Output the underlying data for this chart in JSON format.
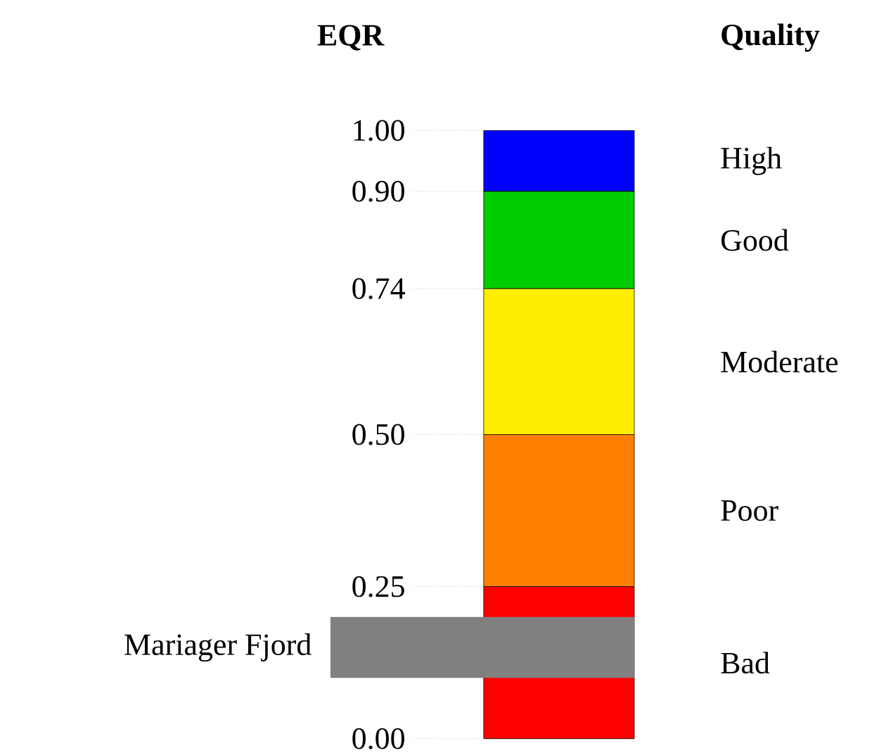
{
  "chart_data": {
    "type": "bar",
    "stacked": true,
    "categories": [
      null
    ],
    "ylabel": "EQR",
    "legend_title": "Quality",
    "grid": false,
    "series": [
      {
        "name": "Bad",
        "color": "#ff0000",
        "values": [
          0.25
        ]
      },
      {
        "name": "Poor",
        "color": "#ff8000",
        "values": [
          0.25
        ]
      },
      {
        "name": "Moderate",
        "color": "#ffee00",
        "values": [
          0.24
        ]
      },
      {
        "name": "Good",
        "color": "#00cc00",
        "values": [
          0.16
        ]
      },
      {
        "name": "High",
        "color": "#0000ff",
        "values": [
          0.1
        ]
      }
    ],
    "ylim": [
      0,
      1
    ],
    "yticks": [
      {
        "value": 0,
        "label": "0.00"
      },
      0.25,
      {
        "value": 0.5,
        "label": "0.50"
      },
      0.74,
      {
        "value": 0.9,
        "label": "0.90"
      },
      {
        "value": 1,
        "label": "1.00"
      }
    ],
    "bands": [
      {
        "axis": "y",
        "from": 0.1,
        "to": 0.2,
        "label": "Mariager Fjord",
        "color": "#808080"
      }
    ]
  }
}
